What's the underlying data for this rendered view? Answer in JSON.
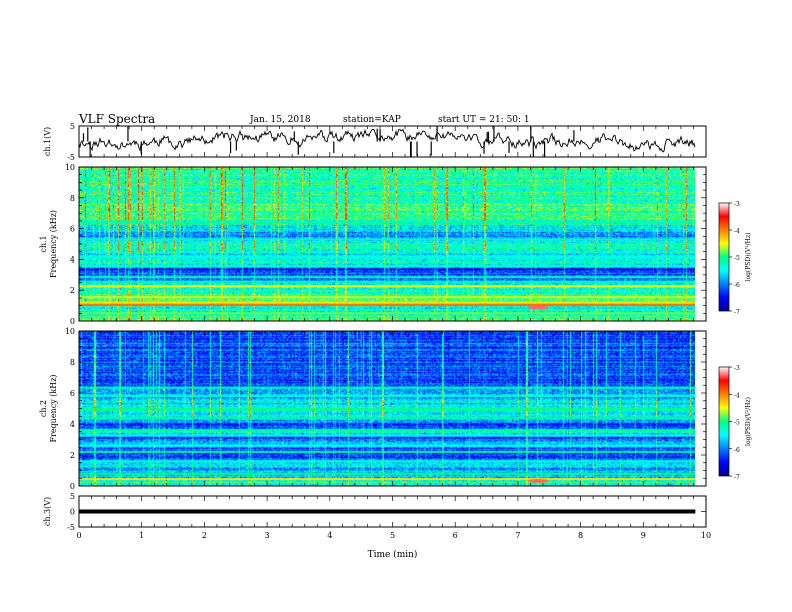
{
  "header": {
    "title": "VLF Spectra",
    "date": "Jan. 15, 2018",
    "station": "station=KAP",
    "start": "start UT =  21: 50: 1"
  },
  "chart_data": [
    {
      "type": "line",
      "panel": "waveform-ch1",
      "ylabel": "ch.1(V)",
      "ylim": [
        -5,
        5
      ],
      "yticks": [
        "5",
        "-5"
      ],
      "xlim": [
        0,
        9.83
      ],
      "baseline": 0,
      "spread": 1.8,
      "seed": 11
    },
    {
      "type": "heatmap",
      "panel": "spectrogram-ch1",
      "ylabel_line1": "ch.1",
      "ylabel_line2": "Frequency (kHz)",
      "ylim": [
        0,
        10
      ],
      "yticks": [
        "0",
        "2",
        "4",
        "6",
        "8",
        "10"
      ],
      "xlim": [
        0,
        9.83
      ],
      "zlim": [
        -7,
        -3
      ],
      "colorbar_ticks": [
        "-3",
        "-4",
        "-5",
        "-6",
        "-7"
      ],
      "colorbar_label": "log(PSD)(V²/Hz)",
      "level_profile": [
        [
          0,
          -4.9
        ],
        [
          0.6,
          -5.3
        ],
        [
          1.0,
          -5.4
        ],
        [
          1.4,
          -4.7
        ],
        [
          1.8,
          -5.2
        ],
        [
          2.3,
          -5.3
        ],
        [
          2.8,
          -6.4
        ],
        [
          3.1,
          -6.1
        ],
        [
          3.4,
          -6.5
        ],
        [
          3.7,
          -5.4
        ],
        [
          4.2,
          -5.6
        ],
        [
          4.6,
          -5.3
        ],
        [
          5.2,
          -5.4
        ],
        [
          5.7,
          -6.1
        ],
        [
          5.9,
          -5.5
        ],
        [
          6.2,
          -5.5
        ],
        [
          6.5,
          -5.1
        ],
        [
          10,
          -5.1
        ]
      ],
      "lines": [
        {
          "f": 0.5,
          "v": -4.8
        },
        {
          "f": 1.05,
          "v": -3.9
        },
        {
          "f": 1.2,
          "v": -4.4
        },
        {
          "f": 1.55,
          "v": -4.6
        },
        {
          "f": 2.25,
          "v": -4.5
        },
        {
          "f": 2.55,
          "v": -5.2
        },
        {
          "f": 2.85,
          "v": -5.2
        },
        {
          "f": 3.55,
          "v": -5.3
        },
        {
          "f": 4.15,
          "v": -5.4
        },
        {
          "f": 5.3,
          "v": -5.3
        },
        {
          "f": 6.4,
          "v": -5.1
        }
      ],
      "burst": {
        "t0": 7.15,
        "t1": 7.5,
        "f0": 0.75,
        "f1": 1.0,
        "v": -3.3
      },
      "seed": 23
    },
    {
      "type": "heatmap",
      "panel": "spectrogram-ch2",
      "ylabel_line1": "ch.2",
      "ylabel_line2": "Frequency (kHz)",
      "ylim": [
        0,
        10
      ],
      "yticks": [
        "0",
        "2",
        "4",
        "6",
        "8",
        "10"
      ],
      "xlim": [
        0,
        9.83
      ],
      "zlim": [
        -7,
        -3
      ],
      "colorbar_ticks": [
        "-3",
        "-4",
        "-5",
        "-6",
        "-7"
      ],
      "colorbar_label": "log(PSD)(V²/Hz)",
      "level_profile": [
        [
          0,
          -5.4
        ],
        [
          0.4,
          -5.2
        ],
        [
          0.7,
          -6.0
        ],
        [
          1.0,
          -5.9
        ],
        [
          1.4,
          -5.4
        ],
        [
          1.9,
          -6.3
        ],
        [
          2.3,
          -6.4
        ],
        [
          2.7,
          -5.7
        ],
        [
          3.1,
          -6.4
        ],
        [
          3.5,
          -5.5
        ],
        [
          4.0,
          -6.4
        ],
        [
          4.4,
          -5.6
        ],
        [
          4.8,
          -5.4
        ],
        [
          5.3,
          -5.6
        ],
        [
          6.2,
          -6.0
        ],
        [
          7.0,
          -6.3
        ],
        [
          8.0,
          -6.2
        ],
        [
          10,
          -6.2
        ]
      ],
      "lines": [
        {
          "f": 0.45,
          "v": -4.4
        },
        {
          "f": 0.8,
          "v": -5.0
        },
        {
          "f": 1.6,
          "v": -5.4
        },
        {
          "f": 2.2,
          "v": -5.1
        },
        {
          "f": 2.6,
          "v": -5.5
        },
        {
          "f": 3.25,
          "v": -5.4
        },
        {
          "f": 3.6,
          "v": -5.1
        },
        {
          "f": 4.4,
          "v": -5.1
        },
        {
          "f": 4.95,
          "v": -5.0
        },
        {
          "f": 5.8,
          "v": -5.4
        },
        {
          "f": 6.35,
          "v": -5.2
        }
      ],
      "burst": {
        "t0": 7.15,
        "t1": 7.5,
        "f0": 0.2,
        "f1": 0.45,
        "v": -3.3
      },
      "seed": 37
    },
    {
      "type": "line",
      "panel": "waveform-ch3",
      "ylabel": "ch.3(V)",
      "ylim": [
        -5,
        5
      ],
      "yticks": [
        "5",
        "0",
        "-5"
      ],
      "xlim": [
        0,
        9.83
      ],
      "baseline": 0,
      "spread": 0,
      "xlabel": "Time (min)",
      "xticks": [
        "0",
        "1",
        "2",
        "3",
        "4",
        "5",
        "6",
        "7",
        "8",
        "9",
        "10"
      ],
      "seed": 5
    }
  ]
}
